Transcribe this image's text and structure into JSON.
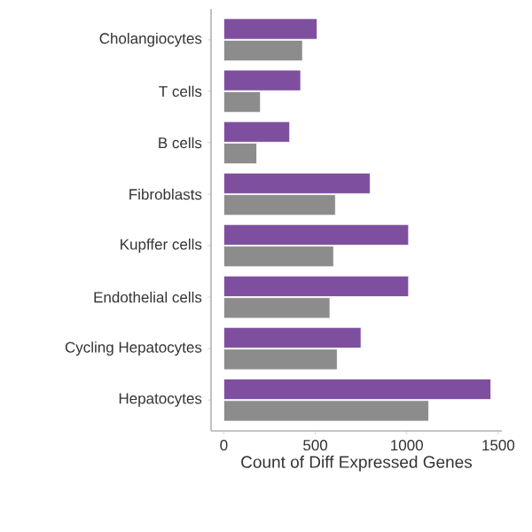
{
  "chart_data": {
    "type": "bar",
    "orientation": "horizontal",
    "xlabel": "Count of Diff Expressed Genes",
    "categories": [
      "Cholangiocytes",
      "T cells",
      "B cells",
      "Fibroblasts",
      "Kupffer cells",
      "Endothelial cells",
      "Cycling Hepatocytes",
      "Hepatocytes"
    ],
    "series": [
      {
        "color": "#7f4f9f",
        "values": [
          510,
          420,
          360,
          800,
          1010,
          1010,
          750,
          1460
        ]
      },
      {
        "color": "#8c8c8c",
        "values": [
          430,
          200,
          180,
          610,
          600,
          580,
          620,
          1120
        ]
      }
    ],
    "xlim": [
      -70,
      1520
    ],
    "xticks": [
      0,
      500,
      1000,
      1500
    ]
  }
}
